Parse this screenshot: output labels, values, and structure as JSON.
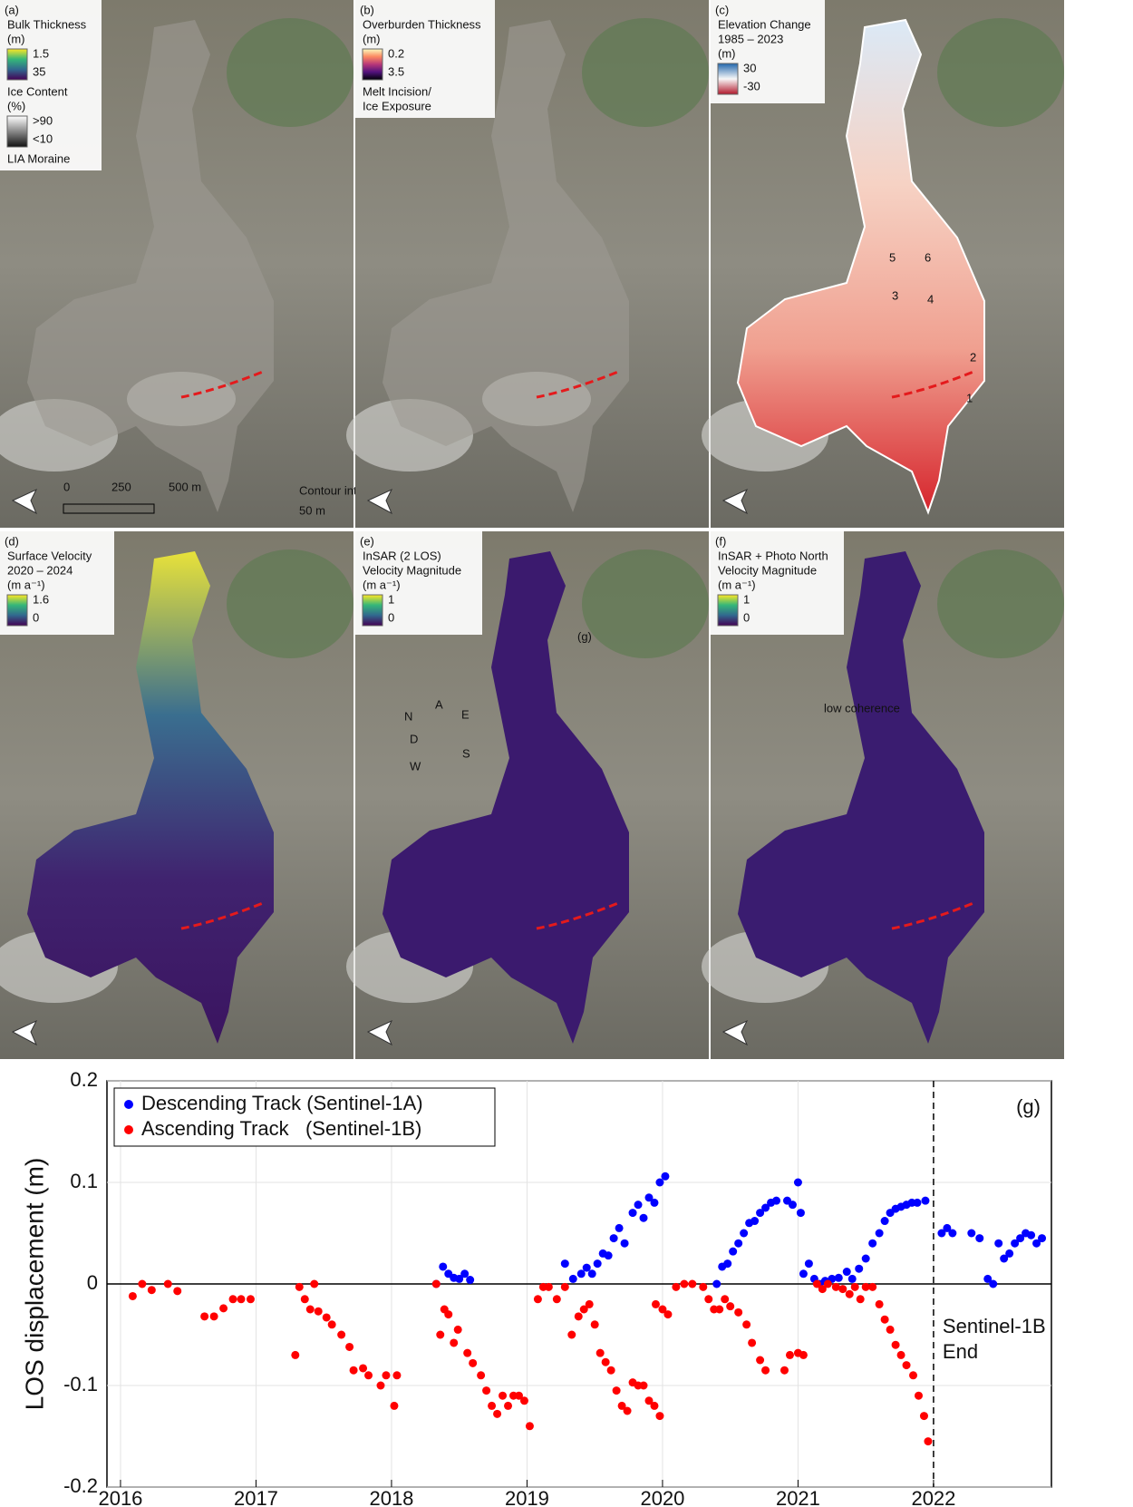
{
  "maps": [
    {
      "label": "(a)",
      "legend": [
        {
          "text": [
            "Bulk Thickness",
            "(m)"
          ]
        },
        {
          "colorbar": [
            "#fde725",
            "#35b779",
            "#31688e",
            "#440154"
          ],
          "labels": [
            "1.5",
            "35"
          ]
        },
        {
          "text": [
            "Ice Content",
            "(%)"
          ]
        },
        {
          "colorbar": [
            "#ffffff",
            "#888888",
            "#111111"
          ],
          "labels": [
            ">90",
            "<10"
          ]
        },
        {
          "text": [
            "LIA Moraine"
          ]
        }
      ],
      "annotations": [
        "0",
        "250",
        "500 m",
        "Contour interval:",
        "50 m"
      ]
    },
    {
      "label": "(b)",
      "legend": [
        {
          "text": [
            "Overburden Thickness",
            "(m)"
          ]
        },
        {
          "colorbar": [
            "#fcfdbf",
            "#fc8961",
            "#b73779",
            "#51127c",
            "#000004"
          ],
          "labels": [
            "0.2",
            "3.5"
          ]
        },
        {
          "text": [
            "Melt Incision/",
            "Ice Exposure"
          ]
        }
      ],
      "annotations": []
    },
    {
      "label": "(c)",
      "legend": [
        {
          "text": [
            "Elevation Change",
            "1985 – 2023",
            "(m)"
          ]
        },
        {
          "colorbar": [
            "#2166ac",
            "#f7f7f7",
            "#b2182b"
          ],
          "labels": [
            "30",
            "-30"
          ]
        }
      ],
      "annotations": [
        "5",
        "6",
        "3",
        "4",
        "2",
        "1"
      ]
    },
    {
      "label": "(d)",
      "legend": [
        {
          "text": [
            "Surface Velocity",
            "2020 – 2024",
            "(m a⁻¹)"
          ]
        },
        {
          "colorbar": [
            "#fde725",
            "#35b779",
            "#31688e",
            "#440154"
          ],
          "labels": [
            "1.6",
            "0"
          ]
        }
      ],
      "annotations": []
    },
    {
      "label": "(e)",
      "legend": [
        {
          "text": [
            "InSAR (2 LOS)",
            "Velocity Magnitude",
            "(m a⁻¹)"
          ]
        },
        {
          "colorbar": [
            "#fde725",
            "#35b779",
            "#31688e",
            "#440154"
          ],
          "labels": [
            "1",
            "0"
          ]
        }
      ],
      "annotations": [
        "(g)",
        "A",
        "D",
        "N",
        "E",
        "S",
        "W"
      ]
    },
    {
      "label": "(f)",
      "legend": [
        {
          "text": [
            "InSAR + Photo North",
            "Velocity Magnitude",
            "(m a⁻¹)"
          ]
        },
        {
          "colorbar": [
            "#fde725",
            "#35b779",
            "#31688e",
            "#440154"
          ],
          "labels": [
            "1",
            "0"
          ]
        }
      ],
      "annotations": [
        "low coherence"
      ]
    }
  ],
  "chart_data": {
    "type": "scatter",
    "label": "(g)",
    "ylabel": "LOS displacement (m)",
    "xlim": [
      2015.9,
      2022.87
    ],
    "ylim": [
      -0.2,
      0.2
    ],
    "xticks": [
      2016,
      2017,
      2018,
      2019,
      2020,
      2021,
      2022
    ],
    "yticks": [
      0.2,
      0.1,
      0,
      -0.1,
      -0.2
    ],
    "grid": true,
    "legend": "upper left",
    "event_line_x": 2022,
    "event_label": [
      "Sentinel-1B",
      "End"
    ],
    "series": [
      {
        "name": "Descending Track (Sentinel-1A)",
        "color": "#0000ff",
        "x": [
          2018.33,
          2018.38,
          2018.42,
          2018.46,
          2018.5,
          2018.54,
          2018.58,
          2019.28,
          2019.34,
          2019.4,
          2019.44,
          2019.48,
          2019.52,
          2019.56,
          2019.6,
          2019.64,
          2019.68,
          2019.72,
          2019.78,
          2019.82,
          2019.86,
          2019.9,
          2019.94,
          2019.98,
          2020.02,
          2020.4,
          2020.44,
          2020.48,
          2020.52,
          2020.56,
          2020.6,
          2020.64,
          2020.68,
          2020.72,
          2020.76,
          2020.8,
          2020.84,
          2020.92,
          2020.96,
          2021.0,
          2021.02,
          2021.04,
          2021.08,
          2021.12,
          2021.16,
          2021.2,
          2021.25,
          2021.3,
          2021.36,
          2021.4,
          2021.45,
          2021.5,
          2021.55,
          2021.6,
          2021.64,
          2021.68,
          2021.72,
          2021.76,
          2021.8,
          2021.84,
          2021.88,
          2021.94,
          2022.06,
          2022.1,
          2022.14,
          2022.28,
          2022.34,
          2022.4,
          2022.44,
          2022.48,
          2022.52,
          2022.56,
          2022.6,
          2022.64,
          2022.68,
          2022.72,
          2022.76,
          2022.8
        ],
        "values": [
          0,
          0.017,
          0.01,
          0.006,
          0.005,
          0.01,
          0.004,
          0.02,
          0.005,
          0.01,
          0.016,
          0.01,
          0.02,
          0.03,
          0.028,
          0.045,
          0.055,
          0.04,
          0.07,
          0.078,
          0.065,
          0.085,
          0.08,
          0.1,
          0.106,
          0,
          0.017,
          0.02,
          0.032,
          0.04,
          0.05,
          0.06,
          0.062,
          0.07,
          0.075,
          0.08,
          0.082,
          0.082,
          0.078,
          0.1,
          0.07,
          0.01,
          0.02,
          0.005,
          0,
          0.003,
          0.005,
          0.006,
          0.012,
          0.005,
          0.015,
          0.025,
          0.04,
          0.05,
          0.062,
          0.07,
          0.074,
          0.076,
          0.078,
          0.08,
          0.08,
          0.082,
          0.05,
          0.055,
          0.05,
          0.05,
          0.045,
          0.005,
          0,
          0.04,
          0.025,
          0.03,
          0.04,
          0.045,
          0.05,
          0.048,
          0.04,
          0.045
        ]
      },
      {
        "name": "Ascending Track   (Sentinel-1B)",
        "color": "#ff0000",
        "x": [
          2016.09,
          2016.16,
          2016.23,
          2016.35,
          2016.42,
          2016.62,
          2016.69,
          2016.76,
          2016.83,
          2016.89,
          2016.96,
          2017.29,
          2017.32,
          2017.36,
          2017.43,
          2017.4,
          2017.46,
          2017.52,
          2017.56,
          2017.63,
          2017.69,
          2017.72,
          2017.79,
          2017.83,
          2017.92,
          2017.96,
          2018.02,
          2018.04,
          2018.33,
          2018.36,
          2018.39,
          2018.42,
          2018.46,
          2018.49,
          2018.56,
          2018.6,
          2018.66,
          2018.7,
          2018.74,
          2018.78,
          2018.82,
          2018.86,
          2018.9,
          2018.94,
          2018.98,
          2019.02,
          2019.08,
          2019.12,
          2019.16,
          2019.22,
          2019.28,
          2019.33,
          2019.38,
          2019.42,
          2019.46,
          2019.5,
          2019.54,
          2019.58,
          2019.62,
          2019.66,
          2019.7,
          2019.74,
          2019.78,
          2019.82,
          2019.86,
          2019.9,
          2019.94,
          2019.98,
          2019.95,
          2020.0,
          2020.04,
          2020.1,
          2020.16,
          2020.22,
          2020.3,
          2020.34,
          2020.38,
          2020.42,
          2020.46,
          2020.5,
          2020.56,
          2020.62,
          2020.66,
          2020.72,
          2020.76,
          2020.9,
          2020.94,
          2021.0,
          2021.04,
          2021.14,
          2021.18,
          2021.22,
          2021.28,
          2021.33,
          2021.38,
          2021.42,
          2021.46,
          2021.5,
          2021.55,
          2021.6,
          2021.64,
          2021.68,
          2021.72,
          2021.76,
          2021.8,
          2021.85,
          2021.89,
          2021.93,
          2021.96
        ],
        "values": [
          -0.012,
          0,
          -0.006,
          0,
          -0.007,
          -0.032,
          -0.032,
          -0.024,
          -0.015,
          -0.015,
          -0.015,
          -0.07,
          -0.003,
          -0.015,
          0,
          -0.025,
          -0.027,
          -0.033,
          -0.04,
          -0.05,
          -0.062,
          -0.085,
          -0.083,
          -0.09,
          -0.1,
          -0.09,
          -0.12,
          -0.09,
          0,
          -0.05,
          -0.025,
          -0.03,
          -0.058,
          -0.045,
          -0.068,
          -0.078,
          -0.09,
          -0.105,
          -0.12,
          -0.128,
          -0.11,
          -0.12,
          -0.11,
          -0.11,
          -0.115,
          -0.14,
          -0.015,
          -0.003,
          -0.003,
          -0.015,
          -0.003,
          -0.05,
          -0.032,
          -0.025,
          -0.02,
          -0.04,
          -0.068,
          -0.077,
          -0.085,
          -0.105,
          -0.12,
          -0.125,
          -0.097,
          -0.1,
          -0.1,
          -0.115,
          -0.12,
          -0.13,
          -0.02,
          -0.025,
          -0.03,
          -0.003,
          0,
          0,
          -0.003,
          -0.015,
          -0.025,
          -0.025,
          -0.015,
          -0.022,
          -0.028,
          -0.04,
          -0.058,
          -0.075,
          -0.085,
          -0.085,
          -0.07,
          -0.068,
          -0.07,
          0,
          -0.005,
          0,
          -0.003,
          -0.005,
          -0.01,
          -0.003,
          -0.015,
          -0.003,
          -0.003,
          -0.02,
          -0.035,
          -0.045,
          -0.06,
          -0.07,
          -0.08,
          -0.09,
          -0.11,
          -0.13,
          -0.155
        ]
      }
    ]
  }
}
